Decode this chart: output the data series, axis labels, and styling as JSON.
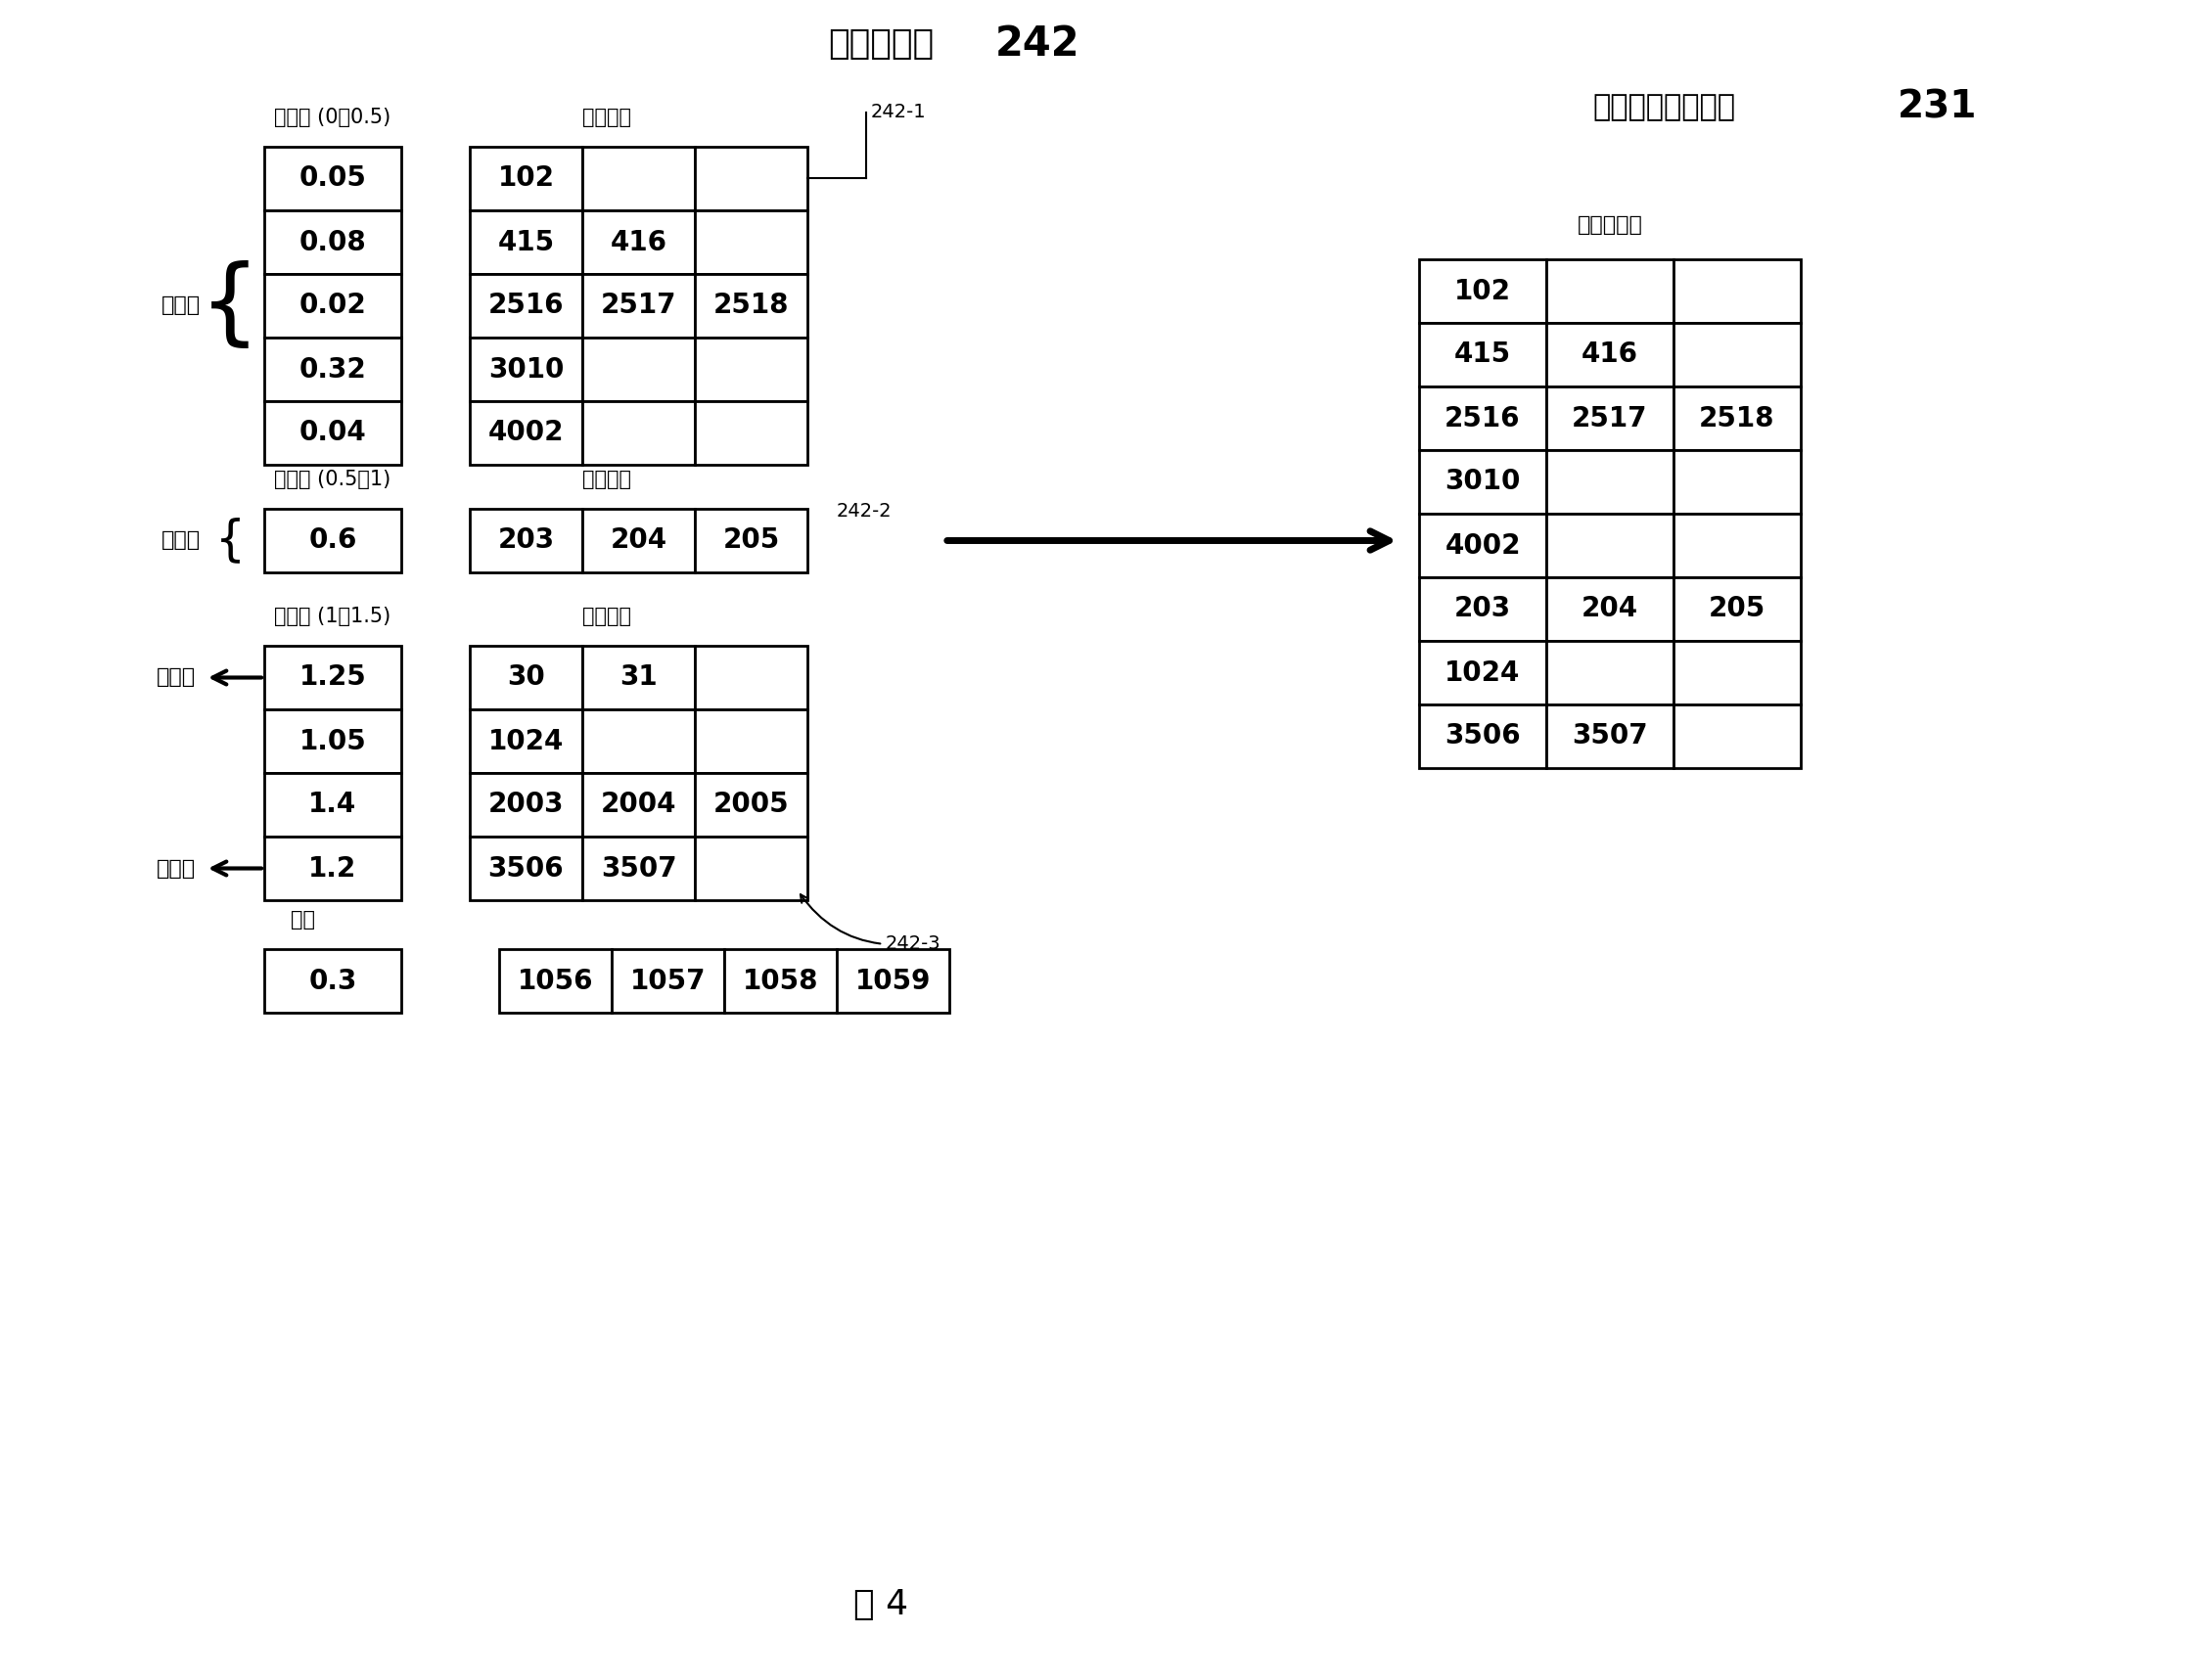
{
  "bg_color": "#ffffff",
  "title_left": "分级堆栈表",
  "title_left_num": "242",
  "title_right_text": "较高错误候选项表",
  "title_right_num": "231",
  "s1_prob_label": "似然度 (0至0.5)",
  "s1_pos_label": "位置信息",
  "s1_cand_label": "候选项",
  "s1_likelihood": [
    "0.05",
    "0.08",
    "0.02",
    "0.32",
    "0.04"
  ],
  "s1_position": [
    [
      "102",
      "",
      ""
    ],
    [
      "415",
      "416",
      ""
    ],
    [
      "2516",
      "2517",
      "2518"
    ],
    [
      "3010",
      "",
      ""
    ],
    [
      "4002",
      "",
      ""
    ]
  ],
  "s1_tag": "242-1",
  "s2_prob_label": "似然度 (0.5至1)",
  "s2_pos_label": "位置信息",
  "s2_cand_label": "候选项",
  "s2_likelihood": [
    "0.6"
  ],
  "s2_position": [
    [
      "203",
      "204",
      "205"
    ]
  ],
  "s2_tag": "242-2",
  "s3_prob_label": "似然度 (1至1.5)",
  "s3_pos_label": "位置信息",
  "s3_cand_label1": "候选项",
  "s3_cand_label2": "候选项",
  "s3_likelihood": [
    "1.25",
    "1.05",
    "1.4",
    "1.2"
  ],
  "s3_position": [
    [
      "30",
      "31",
      ""
    ],
    [
      "1024",
      "",
      ""
    ],
    [
      "2003",
      "2004",
      "2005"
    ],
    [
      "3506",
      "3507",
      ""
    ]
  ],
  "s3_tag": "242-3",
  "exc_label": "例外",
  "exc_likelihood": "0.3",
  "exc_position": [
    "1056",
    "1057",
    "1058",
    "1059"
  ],
  "rt_header": "错误候选项",
  "rt_data": [
    [
      "102",
      "",
      ""
    ],
    [
      "415",
      "416",
      ""
    ],
    [
      "2516",
      "2517",
      "2518"
    ],
    [
      "3010",
      "",
      ""
    ],
    [
      "4002",
      "",
      ""
    ],
    [
      "203",
      "204",
      "205"
    ],
    [
      "1024",
      "",
      ""
    ],
    [
      "3506",
      "3507",
      ""
    ]
  ],
  "fig_label": "图 4"
}
